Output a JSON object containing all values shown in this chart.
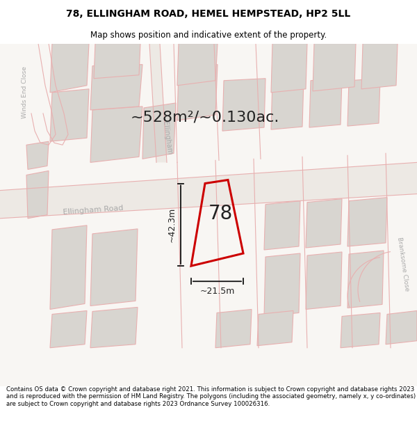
{
  "title_line1": "78, ELLINGHAM ROAD, HEMEL HEMPSTEAD, HP2 5LL",
  "title_line2": "Map shows position and indicative extent of the property.",
  "area_text": "~528m²/~0.130ac.",
  "number_label": "78",
  "dim_width": "~21.5m",
  "dim_height": "~42.3m",
  "footer_text": "Contains OS data © Crown copyright and database right 2021. This information is subject to Crown copyright and database rights 2023 and is reproduced with the permission of HM Land Registry. The polygons (including the associated geometry, namely x, y co-ordinates) are subject to Crown copyright and database rights 2023 Ordnance Survey 100026316.",
  "map_bg": "#f5f3f0",
  "road_fill": "#f5f3f0",
  "block_fill": "#d8d5d0",
  "block_edge": "#e8b0b0",
  "property_edge": "#cc0000",
  "text_dark": "#222222",
  "text_road": "#aaaaaa",
  "title_fontsize": 10,
  "subtitle_fontsize": 8.5,
  "area_fontsize": 16,
  "label_fontsize": 20,
  "dim_fontsize": 9,
  "road_label_fontsize": 8,
  "footer_fontsize": 6.2
}
